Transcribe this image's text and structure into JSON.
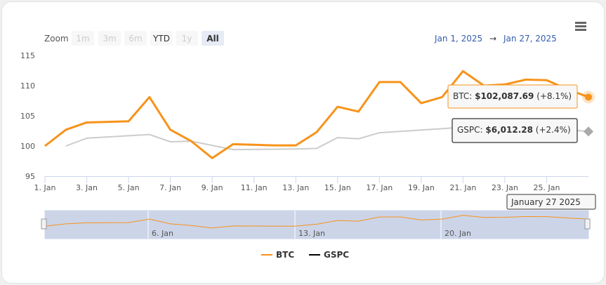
{
  "range_selector": {
    "label": "Zoom",
    "buttons": [
      {
        "label": "1m",
        "state": "disabled"
      },
      {
        "label": "3m",
        "state": "disabled"
      },
      {
        "label": "6m",
        "state": "disabled"
      },
      {
        "label": "YTD",
        "state": "normal"
      },
      {
        "label": "1y",
        "state": "disabled"
      },
      {
        "label": "All",
        "state": "selected"
      }
    ]
  },
  "date_range": {
    "from": "Jan 1, 2025",
    "arrow": "→",
    "to": "Jan 27, 2025"
  },
  "menu_icon": "hamburger-icon",
  "tooltip": {
    "btc_label": "BTC: ",
    "btc_value": "$102,087.69",
    "btc_change": " (+8.1%)",
    "gspc_label": "GSPC: ",
    "gspc_value": "$6,012.28",
    "gspc_change": " (+2.4%)",
    "date": "January 27 2025"
  },
  "chart_data": {
    "type": "line",
    "ylim": [
      95,
      115
    ],
    "yticks": [
      95,
      100,
      105,
      110,
      115
    ],
    "xticks": [
      "1. Jan",
      "3. Jan",
      "5. Jan",
      "7. Jan",
      "9. Jan",
      "11. Jan",
      "13. Jan",
      "15. Jan",
      "17. Jan",
      "19. Jan",
      "21. Jan",
      "23. Jan",
      "25. Jan"
    ],
    "navigator_ticks": [
      "6. Jan",
      "13. Jan",
      "20. Jan"
    ],
    "series": [
      {
        "name": "BTC",
        "color": "#f7931a",
        "days": [
          1,
          2,
          3,
          4,
          5,
          6,
          7,
          8,
          9,
          10,
          11,
          12,
          13,
          14,
          15,
          16,
          17,
          18,
          19,
          20,
          21,
          22,
          23,
          24,
          25,
          26,
          27
        ],
        "values": [
          100,
          102.7,
          103.9,
          104.0,
          104.1,
          108.1,
          102.7,
          100.8,
          98.0,
          100.3,
          100.2,
          100.1,
          100.1,
          102.3,
          106.5,
          105.7,
          110.6,
          110.6,
          107.1,
          108.1,
          112.4,
          110.0,
          110.2,
          111.0,
          110.9,
          109.4,
          108.1
        ]
      },
      {
        "name": "GSPC",
        "color": "#000000",
        "days": [
          2,
          3,
          6,
          7,
          8,
          10,
          13,
          14,
          15,
          16,
          17,
          21,
          22,
          23,
          24,
          27
        ],
        "values": [
          100,
          101.3,
          101.9,
          100.7,
          100.8,
          99.4,
          99.5,
          99.6,
          101.4,
          101.2,
          102.2,
          103.1,
          103.3,
          103.5,
          103.4,
          102.4
        ]
      }
    ],
    "legend": "bottom"
  }
}
